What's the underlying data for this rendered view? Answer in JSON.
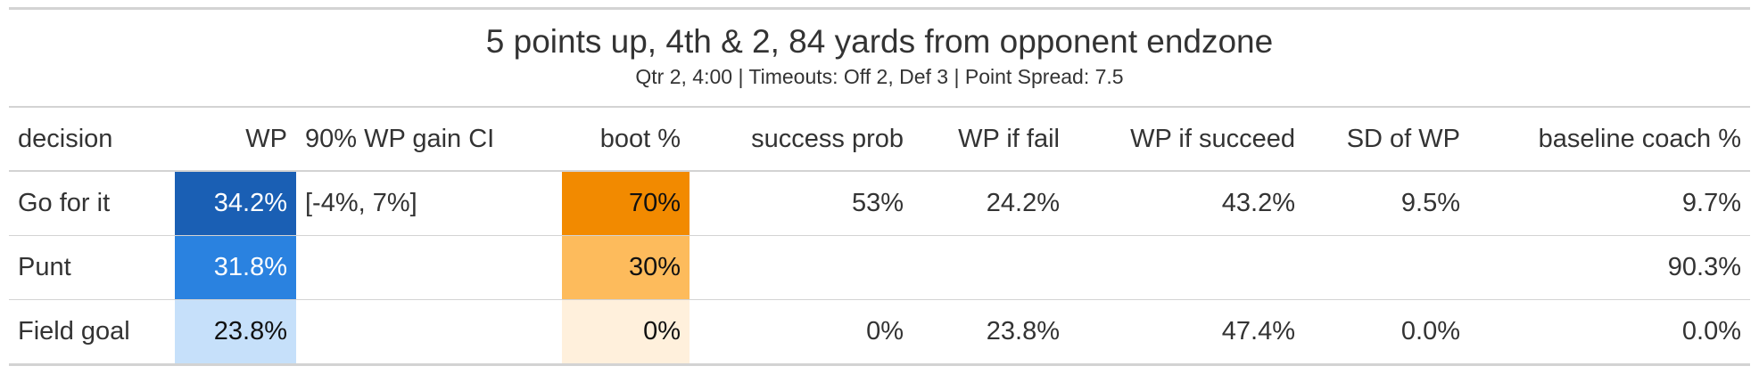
{
  "title": "5 points up, 4th & 2, 84 yards from opponent endzone",
  "subtitle": "Qtr 2, 4:00 | Timeouts: Off 2, Def 3 | Point Spread: 7.5",
  "columns": [
    "decision",
    "WP",
    "90% WP gain CI",
    "boot %",
    "success prob",
    "WP if fail",
    "WP if succeed",
    "SD of WP",
    "baseline coach %"
  ],
  "rows": [
    {
      "decision": "Go for it",
      "wp": "34.2%",
      "ci": "[-4%, 7%]",
      "boot": "70%",
      "success": "53%",
      "wp_fail": "24.2%",
      "wp_succeed": "43.2%",
      "sd": "9.5%",
      "baseline": "9.7%"
    },
    {
      "decision": "Punt",
      "wp": "31.8%",
      "ci": "",
      "boot": "30%",
      "success": "",
      "wp_fail": "",
      "wp_succeed": "",
      "sd": "",
      "baseline": "90.3%"
    },
    {
      "decision": "Field goal",
      "wp": "23.8%",
      "ci": "",
      "boot": "0%",
      "success": "0%",
      "wp_fail": "23.8%",
      "wp_succeed": "47.4%",
      "sd": "0.0%",
      "baseline": "0.0%"
    }
  ],
  "colors": {
    "wp_scale": [
      "#1a5fb4",
      "#2a82e0",
      "#c6e0fa"
    ],
    "boot_scale": [
      "#f28a00",
      "#fdbb5c",
      "#fff0dc"
    ],
    "rule": "#d3d3d3",
    "text": "#333333"
  }
}
